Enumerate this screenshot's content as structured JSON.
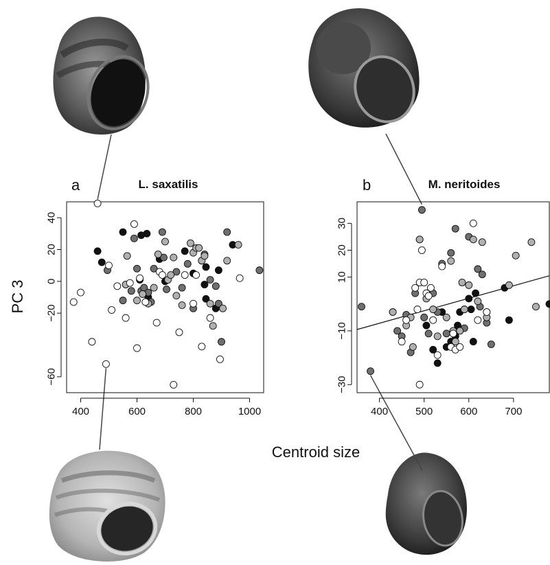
{
  "ylabel": "PC 3",
  "xlabel": "Centroid size",
  "chart_data": [
    {
      "type": "scatter",
      "panel": "a",
      "title": "L. saxatilis",
      "xlim": [
        350,
        1050
      ],
      "ylim": [
        -70,
        50
      ],
      "xticks": [
        400,
        600,
        800,
        1000
      ],
      "yticks": [
        -60,
        -20,
        0,
        20,
        40
      ],
      "grid": false,
      "trendline": null,
      "shell_images": [
        "top-left",
        "bottom-left"
      ],
      "series": [
        {
          "name": "",
          "color": "#111111",
          "points": [
            [
              460,
              19
            ],
            [
              475,
              12
            ],
            [
              550,
              31
            ],
            [
              610,
              1
            ],
            [
              615,
              29
            ],
            [
              635,
              30
            ],
            [
              640,
              -10
            ],
            [
              680,
              14
            ],
            [
              700,
              0
            ],
            [
              770,
              19
            ],
            [
              800,
              5
            ],
            [
              840,
              -2
            ],
            [
              845,
              9
            ],
            [
              845,
              -11
            ],
            [
              880,
              -17
            ],
            [
              890,
              7
            ],
            [
              940,
              23
            ]
          ]
        },
        {
          "name": "",
          "color": "#6f6f6f",
          "points": [
            [
              495,
              7
            ],
            [
              550,
              -12
            ],
            [
              580,
              -6
            ],
            [
              590,
              27
            ],
            [
              600,
              8
            ],
            [
              615,
              -6
            ],
            [
              625,
              -4
            ],
            [
              640,
              -7
            ],
            [
              650,
              -13
            ],
            [
              660,
              8
            ],
            [
              690,
              31
            ],
            [
              695,
              15
            ],
            [
              705,
              -5
            ],
            [
              740,
              6
            ],
            [
              760,
              -4
            ],
            [
              780,
              11
            ],
            [
              800,
              -17
            ],
            [
              830,
              13
            ],
            [
              840,
              17
            ],
            [
              860,
              1
            ],
            [
              880,
              -3
            ],
            [
              890,
              -14
            ],
            [
              900,
              -38
            ],
            [
              920,
              31
            ],
            [
              1035,
              7
            ]
          ]
        },
        {
          "name": "",
          "color": "#b0b0b0",
          "points": [
            [
              560,
              -2
            ],
            [
              565,
              16
            ],
            [
              600,
              -12
            ],
            [
              620,
              -8
            ],
            [
              640,
              -14
            ],
            [
              660,
              -4
            ],
            [
              675,
              17
            ],
            [
              700,
              25
            ],
            [
              710,
              1
            ],
            [
              720,
              4
            ],
            [
              730,
              15
            ],
            [
              740,
              -9
            ],
            [
              760,
              -15
            ],
            [
              790,
              24
            ],
            [
              800,
              18
            ],
            [
              810,
              21
            ],
            [
              820,
              21
            ],
            [
              830,
              13
            ],
            [
              840,
              16
            ],
            [
              860,
              -14
            ],
            [
              870,
              -28
            ],
            [
              905,
              -17
            ],
            [
              920,
              13
            ],
            [
              960,
              23
            ]
          ]
        },
        {
          "name": "",
          "color": "#ffffff",
          "points": [
            [
              375,
              -13
            ],
            [
              400,
              -7
            ],
            [
              440,
              -38
            ],
            [
              460,
              49
            ],
            [
              490,
              -52
            ],
            [
              500,
              10
            ],
            [
              510,
              -18
            ],
            [
              530,
              -3
            ],
            [
              560,
              -23
            ],
            [
              575,
              -1
            ],
            [
              590,
              36
            ],
            [
              600,
              -42
            ],
            [
              610,
              2
            ],
            [
              630,
              -13
            ],
            [
              670,
              -26
            ],
            [
              680,
              6
            ],
            [
              690,
              4
            ],
            [
              730,
              -65
            ],
            [
              750,
              -32
            ],
            [
              770,
              4
            ],
            [
              800,
              -14
            ],
            [
              810,
              4
            ],
            [
              830,
              -41
            ],
            [
              860,
              -23
            ],
            [
              895,
              -49
            ],
            [
              965,
              2
            ]
          ]
        }
      ]
    },
    {
      "type": "scatter",
      "panel": "b",
      "title": "M. neritoides",
      "xlim": [
        350,
        780
      ],
      "ylim": [
        -33,
        38
      ],
      "xticks": [
        400,
        500,
        600,
        700
      ],
      "yticks": [
        -30,
        -10,
        10,
        20,
        30
      ],
      "grid": false,
      "trendline": {
        "x": [
          350,
          780
        ],
        "y": [
          -9.5,
          10.5
        ]
      },
      "shell_images": [
        "top-center",
        "bottom-right"
      ],
      "series": [
        {
          "name": "",
          "color": "#111111",
          "points": [
            [
              505,
              -8
            ],
            [
              520,
              -17
            ],
            [
              530,
              -22
            ],
            [
              540,
              -3
            ],
            [
              550,
              -16
            ],
            [
              560,
              -14
            ],
            [
              570,
              -12
            ],
            [
              575,
              -8
            ],
            [
              580,
              -3
            ],
            [
              590,
              -2
            ],
            [
              600,
              2
            ],
            [
              605,
              -2
            ],
            [
              610,
              -14
            ],
            [
              615,
              4
            ],
            [
              640,
              -3
            ],
            [
              690,
              -6
            ],
            [
              680,
              6
            ],
            [
              780,
              0
            ]
          ]
        },
        {
          "name": "",
          "color": "#6f6f6f",
          "points": [
            [
              360,
              -1
            ],
            [
              380,
              -25
            ],
            [
              430,
              -3
            ],
            [
              440,
              -10
            ],
            [
              450,
              -12
            ],
            [
              460,
              -4
            ],
            [
              470,
              -18
            ],
            [
              480,
              4
            ],
            [
              490,
              24
            ],
            [
              495,
              35
            ],
            [
              500,
              -5
            ],
            [
              510,
              -11
            ],
            [
              520,
              4
            ],
            [
              530,
              -3
            ],
            [
              540,
              15
            ],
            [
              550,
              -11
            ],
            [
              560,
              19
            ],
            [
              570,
              28
            ],
            [
              590,
              -9
            ],
            [
              600,
              25
            ],
            [
              620,
              13
            ],
            [
              625,
              -1
            ],
            [
              630,
              11
            ],
            [
              640,
              -7
            ],
            [
              650,
              -15
            ]
          ]
        },
        {
          "name": "",
          "color": "#b0b0b0",
          "points": [
            [
              430,
              -3
            ],
            [
              460,
              -8
            ],
            [
              470,
              -5
            ],
            [
              475,
              -16
            ],
            [
              490,
              24
            ],
            [
              505,
              2
            ],
            [
              520,
              -2
            ],
            [
              530,
              -12
            ],
            [
              550,
              -5
            ],
            [
              560,
              16
            ],
            [
              565,
              -10
            ],
            [
              570,
              -14
            ],
            [
              580,
              -10
            ],
            [
              585,
              8
            ],
            [
              590,
              -2
            ],
            [
              600,
              7
            ],
            [
              610,
              24
            ],
            [
              620,
              1
            ],
            [
              630,
              23
            ],
            [
              640,
              -5
            ],
            [
              690,
              7
            ],
            [
              705,
              18
            ],
            [
              740,
              23
            ],
            [
              750,
              -1
            ]
          ]
        },
        {
          "name": "",
          "color": "#ffffff",
          "points": [
            [
              450,
              -14
            ],
            [
              460,
              -6
            ],
            [
              480,
              6
            ],
            [
              485,
              -2
            ],
            [
              490,
              8
            ],
            [
              495,
              20
            ],
            [
              500,
              8
            ],
            [
              505,
              4
            ],
            [
              510,
              3
            ],
            [
              515,
              6
            ],
            [
              520,
              -6
            ],
            [
              530,
              -19
            ],
            [
              540,
              14
            ],
            [
              560,
              -16
            ],
            [
              565,
              -11
            ],
            [
              570,
              -17
            ],
            [
              580,
              -16
            ],
            [
              610,
              30
            ],
            [
              620,
              -6
            ],
            [
              640,
              -3
            ],
            [
              490,
              -30
            ]
          ]
        }
      ]
    }
  ]
}
